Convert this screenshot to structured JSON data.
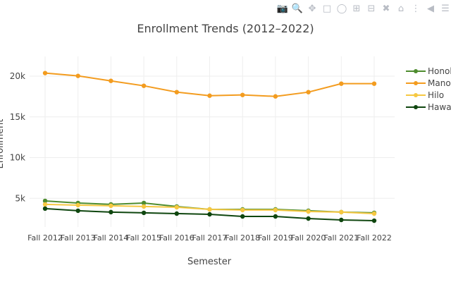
{
  "toolbar": {
    "icons": [
      "camera-icon",
      "zoom-icon",
      "pan-icon",
      "box-select-icon",
      "lasso-select-icon",
      "zoom-in-icon",
      "zoom-out-icon",
      "autoscale-icon",
      "reset-axes-icon",
      "spike-lines-icon",
      "hover-closest-icon",
      "hover-compare-icon"
    ]
  },
  "chart_data": {
    "type": "line",
    "title": "Enrollment Trends (2012–2022)",
    "xlabel": "Semester",
    "ylabel": "Enrollment",
    "categories": [
      "Fall 2012",
      "Fall 2013",
      "Fall 2014",
      "Fall 2015",
      "Fall 2016",
      "Fall 2017",
      "Fall 2018",
      "Fall 2019",
      "Fall 2020",
      "Fall 2021",
      "Fall 2022"
    ],
    "yticks": [
      5000,
      10000,
      15000,
      20000
    ],
    "ytick_labels": [
      "5k",
      "10k",
      "15k",
      "20k"
    ],
    "ylim": [
      0,
      21500
    ],
    "grid": true,
    "legend_position": "right",
    "series": [
      {
        "name": "Honolu",
        "color": "#4e8c2f",
        "values": [
          4680,
          4420,
          4250,
          4420,
          3990,
          3640,
          3640,
          3640,
          3470,
          3300,
          3210
        ]
      },
      {
        "name": "Manoa",
        "color": "#f39c1f",
        "values": [
          20375,
          20030,
          19420,
          18815,
          18035,
          17600,
          17690,
          17515,
          18035,
          19075,
          19075
        ]
      },
      {
        "name": "Hilo",
        "color": "#f6c842",
        "values": [
          4250,
          4160,
          4080,
          3990,
          3900,
          3640,
          3560,
          3560,
          3380,
          3300,
          3120
        ]
      },
      {
        "name": "Hawai`",
        "color": "#0f460f",
        "values": [
          3730,
          3470,
          3300,
          3210,
          3120,
          3030,
          2770,
          2770,
          2510,
          2340,
          2250
        ]
      }
    ]
  }
}
